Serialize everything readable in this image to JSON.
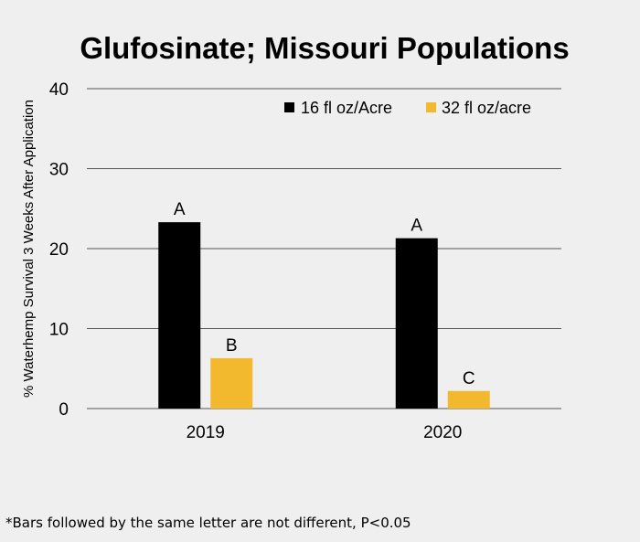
{
  "chart_data": {
    "type": "bar",
    "title": "Glufosinate; Missouri Populations",
    "xlabel": "",
    "ylabel": "% Waterhemp  Survival 3 Weeks After Application",
    "categories": [
      "2019",
      "2020"
    ],
    "series": [
      {
        "name": "16 fl oz/Acre",
        "values": [
          23.3,
          21.3
        ],
        "color": "#000000",
        "letters": [
          "A",
          "A"
        ]
      },
      {
        "name": "32 fl oz/acre",
        "values": [
          6.3,
          2.2
        ],
        "color": "#F2B92E",
        "letters": [
          "B",
          "C"
        ]
      }
    ],
    "ylim": [
      0,
      40
    ],
    "yticks": [
      0,
      10,
      20,
      30,
      40
    ],
    "grid": true,
    "legend_position": "top-right"
  },
  "footnote": "*Bars followed by the same letter are not different, P<0.05",
  "colors": {
    "background": "#EFEFEF",
    "gridline": "#555555"
  }
}
